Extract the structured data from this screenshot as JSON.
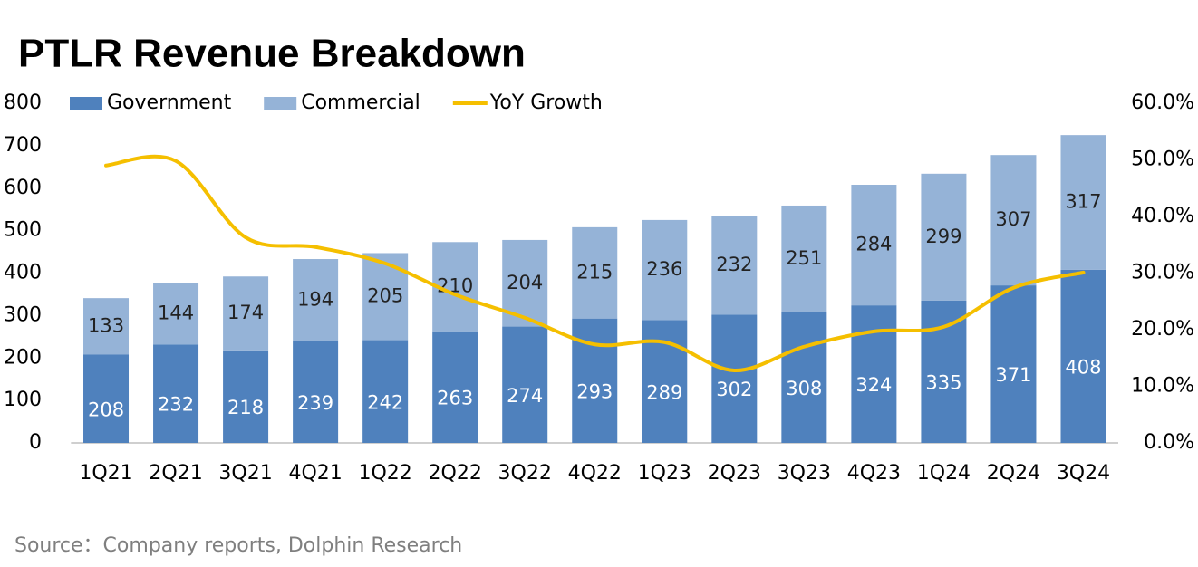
{
  "chart_data": {
    "type": "bar",
    "stacked": true,
    "title": "PTLR Revenue Breakdown",
    "source": "Source：Company reports, Dolphin Research",
    "categories": [
      "1Q21",
      "2Q21",
      "3Q21",
      "4Q21",
      "1Q22",
      "2Q22",
      "3Q22",
      "4Q22",
      "1Q23",
      "2Q23",
      "3Q23",
      "4Q23",
      "1Q24",
      "2Q24",
      "3Q24"
    ],
    "series": [
      {
        "name": "Government",
        "color": "#4f81bd",
        "values": [
          208,
          232,
          218,
          239,
          242,
          263,
          274,
          293,
          289,
          302,
          308,
          324,
          335,
          371,
          408
        ]
      },
      {
        "name": "Commercial",
        "color": "#95b3d7",
        "values": [
          133,
          144,
          174,
          194,
          205,
          210,
          204,
          215,
          236,
          232,
          251,
          284,
          299,
          307,
          317
        ]
      },
      {
        "name": "YoY Growth",
        "type": "line",
        "axis": "y2",
        "color": "#f5bf00",
        "values": [
          49.0,
          49.8,
          36.3,
          34.6,
          31.7,
          26.2,
          22.1,
          17.4,
          17.8,
          12.8,
          17.0,
          19.7,
          20.5,
          27.4,
          30.1
        ]
      }
    ],
    "ylim": [
      0,
      800
    ],
    "yticks": [
      0,
      100,
      200,
      300,
      400,
      500,
      600,
      700,
      800
    ],
    "y2lim": [
      0,
      60
    ],
    "y2ticks": [
      {
        "value": 0,
        "label": "0.0%"
      },
      {
        "value": 10,
        "label": "10.0%"
      },
      {
        "value": 20,
        "label": "20.0%"
      },
      {
        "value": 30,
        "label": "30.0%"
      },
      {
        "value": 40,
        "label": "40.0%"
      },
      {
        "value": 50,
        "label": "50.0%"
      },
      {
        "value": 60,
        "label": "60.0%"
      }
    ],
    "grid": false
  }
}
